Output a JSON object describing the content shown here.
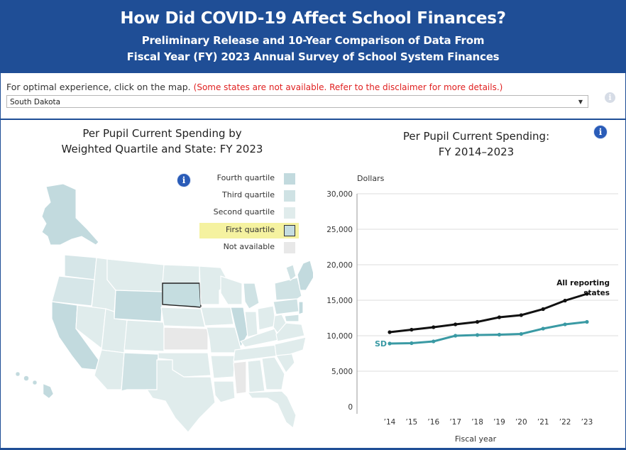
{
  "banner": {
    "title": "How Did COVID-19 Affect School Finances?",
    "subtitle_line1": "Preliminary Release and 10-Year Comparison of Data From",
    "subtitle_line2": "Fiscal Year (FY) 2023 Annual Survey of School System Finances"
  },
  "controls": {
    "instruction": "For optimal experience, click on the map.",
    "disclaimer": "(Some states are not available. Refer to the disclaimer for more details.)",
    "state_select_value": "South Dakota",
    "info_icon": "info-icon"
  },
  "map_panel": {
    "title_line1": "Per Pupil Current Spending by",
    "title_line2": "Weighted Quartile and State: FY 2023",
    "info_icon": "info-icon",
    "legend": [
      {
        "label": "Fourth quartile",
        "color": "#c2dade",
        "highlighted": false
      },
      {
        "label": "Third quartile",
        "color": "#cfe2e4",
        "highlighted": false
      },
      {
        "label": "Second quartile",
        "color": "#e0ecec",
        "highlighted": false
      },
      {
        "label": "First quartile",
        "color": "#c5dde0",
        "highlighted": true
      },
      {
        "label": "Not available",
        "color": "#e8e8e8",
        "highlighted": false
      }
    ],
    "selected_state": "South Dakota"
  },
  "chart_panel": {
    "title_line1": "Per Pupil Current Spending:",
    "title_line2": "FY 2014–2023",
    "info_icon": "info-icon"
  },
  "chart_data": {
    "type": "line",
    "ylabel": "Dollars",
    "xlabel": "Fiscal year",
    "categories": [
      "’14",
      "’15",
      "’16",
      "’17",
      "’18",
      "’19",
      "’20",
      "’21",
      "’22",
      "’23"
    ],
    "ylim": [
      0,
      30000
    ],
    "yticks": [
      0,
      5000,
      10000,
      15000,
      20000,
      25000,
      30000
    ],
    "ytick_labels": [
      "0",
      "5,000",
      "10,000",
      "15,000",
      "20,000",
      "25,000",
      "30,000"
    ],
    "grid": "horizontal",
    "series": [
      {
        "name": "All reporting states",
        "label_line1": "All reporting",
        "label_line2": "states",
        "color": "#111111",
        "values": [
          10500,
          10850,
          11200,
          11600,
          11950,
          12600,
          12900,
          13750,
          14950,
          15900
        ]
      },
      {
        "name": "SD",
        "label_line1": "SD",
        "color": "#3a9aa4",
        "values": [
          8900,
          8950,
          9200,
          10000,
          10100,
          10150,
          10250,
          11000,
          11600,
          11950
        ]
      }
    ]
  }
}
